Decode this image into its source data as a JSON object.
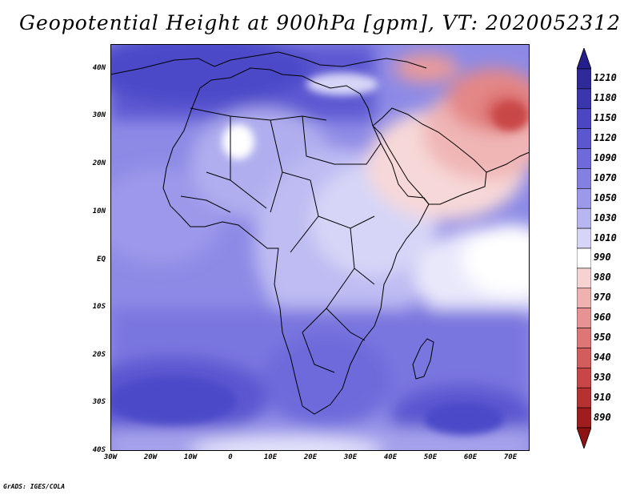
{
  "title": "Geopotential Height at 900hPa [gpm], VT: 2020052312",
  "map": {
    "variable": "Geopotential Height",
    "level": "900hPa",
    "units": "gpm",
    "valid_time": "2020052312",
    "lat_range": [
      -40,
      45
    ],
    "lon_range": [
      -30,
      75
    ],
    "lat_labels": [
      "40N",
      "30N",
      "20N",
      "10N",
      "EQ",
      "10S",
      "20S",
      "30S",
      "40S"
    ],
    "lon_labels": [
      "30W",
      "20W",
      "10W",
      "0",
      "10E",
      "20E",
      "30E",
      "40E",
      "50E",
      "60E",
      "70E"
    ]
  },
  "colorbar": {
    "levels": [
      "1210",
      "1180",
      "1150",
      "1120",
      "1090",
      "1070",
      "1050",
      "1030",
      "1010",
      "990",
      "980",
      "970",
      "960",
      "950",
      "940",
      "930",
      "910",
      "890"
    ],
    "colors": [
      "#2e2a9a",
      "#3a36ad",
      "#4a46c4",
      "#5b57d0",
      "#6e6adb",
      "#8480e3",
      "#9c99ea",
      "#b8b6f0",
      "#d6d5f7",
      "#ffffff",
      "#f7d2d2",
      "#f0b1b1",
      "#e89393",
      "#df7676",
      "#d45c5c",
      "#c94646",
      "#b73131",
      "#a11c1c"
    ]
  },
  "credit": "GrADS: IGES/COLA"
}
